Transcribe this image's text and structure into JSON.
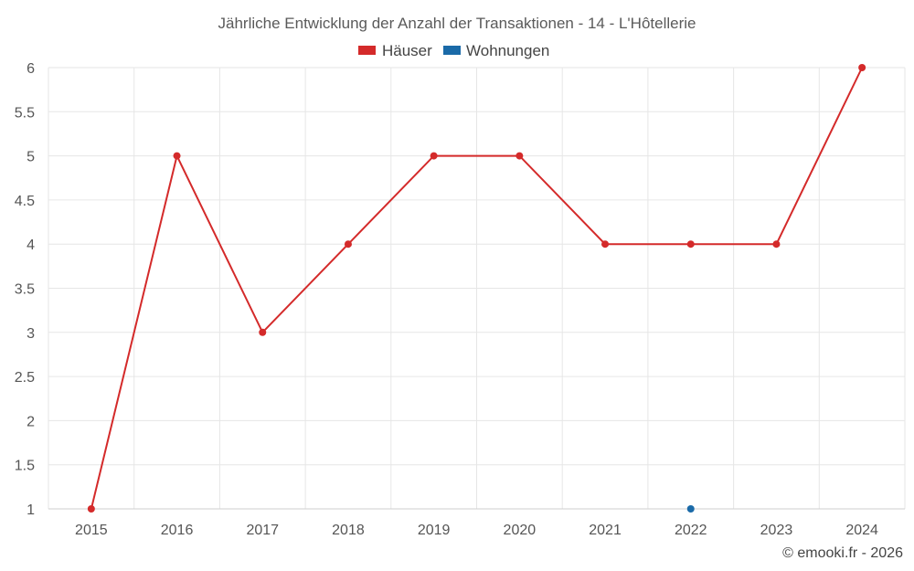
{
  "chart_data": {
    "type": "line",
    "title": "Jährliche Entwicklung der Anzahl der Transaktionen - 14 - L'Hôtellerie",
    "x": [
      "2015",
      "2016",
      "2017",
      "2018",
      "2019",
      "2020",
      "2021",
      "2022",
      "2023",
      "2024"
    ],
    "series": [
      {
        "name": "Häuser",
        "color": "#d42a2a",
        "values": [
          1,
          5,
          3,
          4,
          5,
          5,
          4,
          4,
          4,
          6
        ]
      },
      {
        "name": "Wohnungen",
        "color": "#1a6aa8",
        "values": [
          null,
          null,
          null,
          null,
          null,
          null,
          null,
          1,
          null,
          null
        ]
      }
    ],
    "ylim": [
      1,
      6
    ],
    "yticks": [
      "1",
      "1.5",
      "2",
      "2.5",
      "3",
      "3.5",
      "4",
      "4.5",
      "5",
      "5.5",
      "6"
    ],
    "grid": true,
    "legend": "top-center",
    "credit": "© emooki.fr - 2026"
  }
}
